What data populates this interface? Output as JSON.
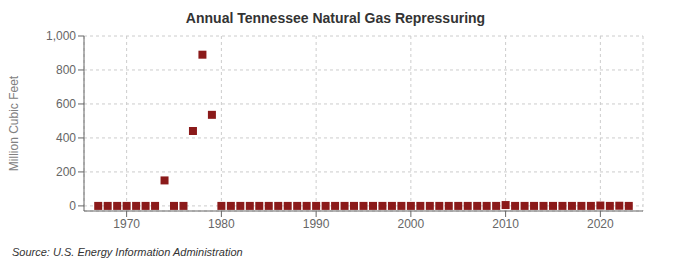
{
  "chart_data": {
    "type": "scatter",
    "title": "Annual Tennessee Natural Gas Repressuring",
    "ylabel": "Million Cubic Feet",
    "source": "Source: U.S. Energy Information Administration",
    "color": "#8b1a1a",
    "marker": "square",
    "grid": true,
    "xlim": [
      1965.5,
      2024.5
    ],
    "ylim": [
      -30,
      1000
    ],
    "xticks": [
      1970,
      1980,
      1990,
      2000,
      2010,
      2020
    ],
    "yticks": [
      0,
      200,
      400,
      600,
      800,
      {
        "value": 1000,
        "label": "1,000"
      }
    ],
    "x": [
      1967,
      1968,
      1969,
      1970,
      1971,
      1972,
      1973,
      1974,
      1975,
      1976,
      1977,
      1978,
      1979,
      1980,
      1981,
      1982,
      1983,
      1984,
      1985,
      1986,
      1987,
      1988,
      1989,
      1990,
      1991,
      1992,
      1993,
      1994,
      1995,
      1996,
      1997,
      1998,
      1999,
      2000,
      2001,
      2002,
      2003,
      2004,
      2005,
      2006,
      2007,
      2008,
      2009,
      2010,
      2011,
      2012,
      2013,
      2014,
      2015,
      2016,
      2017,
      2018,
      2019,
      2020,
      2021,
      2022,
      2023
    ],
    "values": [
      0,
      0,
      0,
      0,
      0,
      0,
      0,
      150,
      0,
      0,
      441,
      890,
      536,
      0,
      0,
      0,
      0,
      0,
      0,
      0,
      0,
      0,
      0,
      0,
      0,
      0,
      0,
      0,
      0,
      0,
      0,
      0,
      0,
      0,
      0,
      0,
      0,
      0,
      0,
      0,
      0,
      0,
      0,
      5,
      0,
      0,
      0,
      0,
      0,
      0,
      0,
      0,
      0,
      2,
      0,
      1,
      0
    ]
  }
}
